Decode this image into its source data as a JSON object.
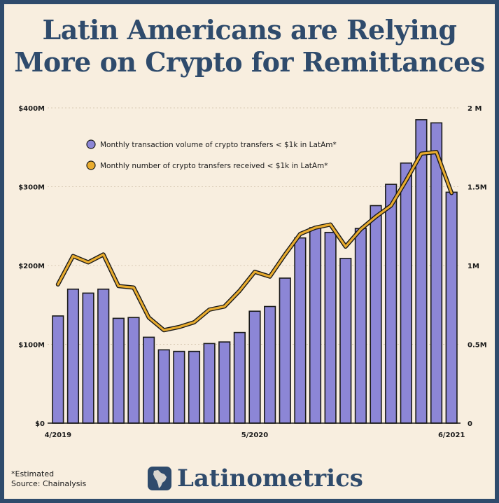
{
  "title": {
    "line1": "Latin Americans are Relying",
    "line2": "More on Crypto for Remittances"
  },
  "footnote": {
    "line1": "*Estimated",
    "line2": "Source: Chainalysis"
  },
  "brand": {
    "name": "Latinometrics",
    "logo_icon": "latin-america-map-icon"
  },
  "colors": {
    "background": "#2f4b6c",
    "panel": "#f8eedf",
    "bar_fill": "#8c86d6",
    "line": "#e9ac2e",
    "title": "#2f4b6c"
  },
  "chart_data": {
    "type": "bar",
    "categories": [
      "4/2019",
      "",
      "",
      "",
      "",
      "",
      "",
      "",
      "",
      "",
      "",
      "",
      "",
      "5/2020",
      "",
      "",
      "",
      "",
      "",
      "",
      "",
      "",
      "",
      "",
      "",
      "",
      "6/2021"
    ],
    "series": [
      {
        "name": "Monthly transaction volume of crypto transfers < $1k in LatAm*",
        "type": "bar",
        "axis": "left",
        "values": [
          136,
          170,
          165,
          170,
          133,
          134,
          109,
          93,
          91,
          91,
          101,
          103,
          115,
          142,
          148,
          184,
          235,
          248,
          242,
          209,
          247,
          276,
          303,
          330,
          385,
          381,
          293
        ]
      },
      {
        "name": "Monthly number of crypto transfers received < $1k in LatAm*",
        "type": "line",
        "axis": "right",
        "values": [
          0.88,
          1.06,
          1.02,
          1.07,
          0.87,
          0.86,
          0.67,
          0.59,
          0.61,
          0.64,
          0.72,
          0.74,
          0.84,
          0.96,
          0.93,
          1.07,
          1.2,
          1.24,
          1.26,
          1.12,
          1.23,
          1.31,
          1.38,
          1.54,
          1.71,
          1.72,
          1.46
        ]
      }
    ],
    "y_left": {
      "ticks": [
        "$0",
        "$100M",
        "$200M",
        "$300M",
        "$400M"
      ],
      "lim": [
        0,
        400
      ]
    },
    "y_right": {
      "ticks": [
        "0",
        "0.5M",
        "1M",
        "1.5M",
        "2 M"
      ],
      "lim": [
        0,
        2
      ]
    },
    "x_tick_labels": [
      "4/2019",
      "5/2020",
      "6/2021"
    ],
    "grid": true,
    "legend": "top-left"
  }
}
